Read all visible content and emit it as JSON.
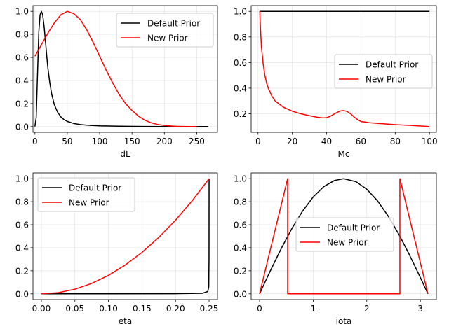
{
  "figure": {
    "background": "#ffffff"
  },
  "legend": {
    "entries": [
      {
        "label": "Default Prior",
        "color": "#000000"
      },
      {
        "label": "New Prior",
        "color": "#ff0000"
      }
    ]
  },
  "chart_data": [
    {
      "type": "line",
      "title": "",
      "xlabel": "dL",
      "ylabel": "",
      "xlim": [
        -3,
        282
      ],
      "ylim": [
        -0.05,
        1.05
      ],
      "xticks": [
        0,
        50,
        100,
        150,
        200,
        250
      ],
      "yticks": [
        0.0,
        0.2,
        0.4,
        0.6,
        0.8,
        1.0
      ],
      "grid": true,
      "legend_position": "upper right",
      "series": [
        {
          "name": "Default Prior",
          "color": "#000000",
          "x": [
            0,
            2,
            4,
            6,
            8,
            10,
            12,
            14,
            16,
            18,
            20,
            23,
            26,
            30,
            35,
            40,
            45,
            50,
            60,
            70,
            80,
            100,
            130,
            170,
            220,
            268
          ],
          "y": [
            0.0,
            0.08,
            0.45,
            0.82,
            0.97,
            1.0,
            0.97,
            0.88,
            0.76,
            0.63,
            0.51,
            0.38,
            0.28,
            0.19,
            0.125,
            0.085,
            0.06,
            0.045,
            0.027,
            0.018,
            0.012,
            0.006,
            0.003,
            0.001,
            0.0,
            0.0
          ]
        },
        {
          "name": "New Prior",
          "color": "#ff0000",
          "x": [
            0,
            10,
            20,
            30,
            40,
            50,
            60,
            70,
            80,
            90,
            100,
            110,
            120,
            130,
            140,
            150,
            160,
            170,
            180,
            190,
            200,
            210,
            220,
            230,
            240,
            250
          ],
          "y": [
            0.61,
            0.71,
            0.81,
            0.9,
            0.97,
            1.0,
            0.98,
            0.93,
            0.84,
            0.73,
            0.61,
            0.49,
            0.38,
            0.28,
            0.2,
            0.14,
            0.09,
            0.055,
            0.032,
            0.018,
            0.01,
            0.005,
            0.002,
            0.001,
            0.0,
            0.0
          ]
        }
      ]
    },
    {
      "type": "line",
      "title": "",
      "xlabel": "Mc",
      "ylabel": "",
      "xlim": [
        -4,
        104
      ],
      "ylim": [
        0.055,
        1.045
      ],
      "xticks": [
        0,
        20,
        40,
        60,
        80,
        100
      ],
      "yticks": [
        0.2,
        0.4,
        0.6,
        0.8,
        1.0
      ],
      "grid": true,
      "legend_position": "center right",
      "series": [
        {
          "name": "Default Prior",
          "color": "#000000",
          "x": [
            1,
            100
          ],
          "y": [
            1.0,
            1.0
          ]
        },
        {
          "name": "New Prior",
          "color": "#ff0000",
          "x": [
            1,
            1.5,
            2,
            3,
            4,
            5,
            6,
            8,
            10,
            12,
            15,
            20,
            25,
            30,
            35,
            38,
            40,
            42,
            44,
            46,
            48,
            50,
            52,
            54,
            56,
            58,
            60,
            65,
            70,
            80,
            90,
            100
          ],
          "y": [
            1.0,
            0.85,
            0.72,
            0.59,
            0.5,
            0.44,
            0.4,
            0.34,
            0.3,
            0.28,
            0.25,
            0.22,
            0.2,
            0.185,
            0.172,
            0.168,
            0.17,
            0.18,
            0.195,
            0.21,
            0.222,
            0.225,
            0.218,
            0.2,
            0.175,
            0.155,
            0.14,
            0.13,
            0.125,
            0.115,
            0.108,
            0.1
          ]
        }
      ]
    },
    {
      "type": "line",
      "title": "",
      "xlabel": "eta",
      "ylabel": "",
      "xlim": [
        -0.0125,
        0.2625
      ],
      "ylim": [
        -0.05,
        1.05
      ],
      "xticks": [
        0.0,
        0.05,
        0.1,
        0.15,
        0.2,
        0.25
      ],
      "yticks": [
        0.0,
        0.2,
        0.4,
        0.6,
        0.8,
        1.0
      ],
      "grid": true,
      "legend_position": "upper left",
      "series": [
        {
          "name": "Default Prior",
          "color": "#000000",
          "x": [
            0.0,
            0.1,
            0.2,
            0.24,
            0.248,
            0.2495,
            0.2499,
            0.25
          ],
          "y": [
            0.0,
            0.0,
            0.001,
            0.005,
            0.02,
            0.06,
            0.3,
            1.0
          ]
        },
        {
          "name": "New Prior",
          "color": "#ff0000",
          "x": [
            0.0,
            0.025,
            0.05,
            0.075,
            0.1,
            0.125,
            0.15,
            0.175,
            0.2,
            0.225,
            0.25
          ],
          "y": [
            0.0,
            0.01,
            0.04,
            0.09,
            0.16,
            0.25,
            0.36,
            0.49,
            0.64,
            0.81,
            1.0
          ]
        }
      ]
    },
    {
      "type": "line",
      "title": "",
      "xlabel": "iota",
      "ylabel": "",
      "xlim": [
        -0.157,
        3.299
      ],
      "ylim": [
        -0.05,
        1.05
      ],
      "xticks": [
        0,
        1,
        2,
        3
      ],
      "yticks": [
        0.0,
        0.2,
        0.4,
        0.6,
        0.8,
        1.0
      ],
      "grid": true,
      "legend_position": "center",
      "series": [
        {
          "name": "Default Prior",
          "color": "#000000",
          "x": [
            0.0,
            0.2,
            0.4,
            0.6,
            0.8,
            1.0,
            1.2,
            1.4,
            1.5708,
            1.8,
            2.0,
            2.2,
            2.4,
            2.6,
            2.8,
            3.0,
            3.1416
          ],
          "y": [
            0.0,
            0.199,
            0.389,
            0.565,
            0.717,
            0.841,
            0.932,
            0.985,
            1.0,
            0.974,
            0.909,
            0.808,
            0.675,
            0.516,
            0.335,
            0.141,
            0.0
          ]
        },
        {
          "name": "New Prior",
          "color": "#ff0000",
          "x": [
            0.0,
            0.5236,
            0.5236,
            2.618,
            2.618,
            3.1416
          ],
          "y": [
            0.0,
            1.0,
            0.0,
            0.0,
            1.0,
            0.0
          ]
        }
      ]
    }
  ]
}
